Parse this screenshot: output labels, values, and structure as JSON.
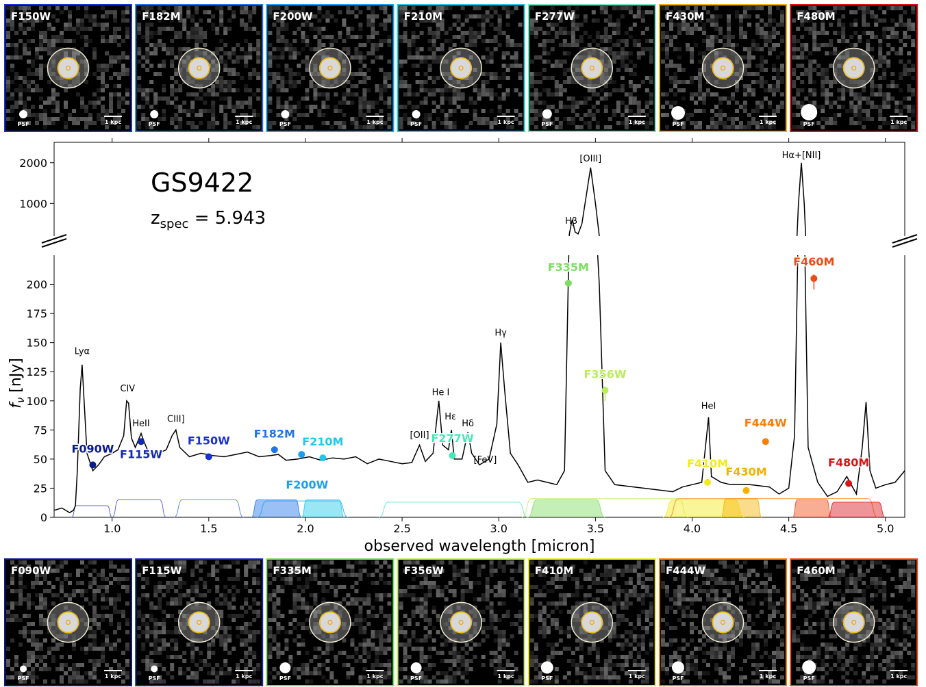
{
  "object": "GS9422",
  "zlabel_prefix": "z",
  "zlabel_sub": "spec",
  "zlabel_value": " = 5.943",
  "psf_label": "PSF",
  "scalebar_label": "1 kpc",
  "thumbnails_top": [
    {
      "name": "F150W",
      "color": "#1a2fd6",
      "psf": 6
    },
    {
      "name": "F182M",
      "color": "#1f74e8",
      "psf": 6
    },
    {
      "name": "F200W",
      "color": "#1aa0f0",
      "psf": 6
    },
    {
      "name": "F210M",
      "color": "#22c8e6",
      "psf": 6
    },
    {
      "name": "F277W",
      "color": "#6fe8c0",
      "psf": 7
    },
    {
      "name": "F430M",
      "color": "#f5b100",
      "psf": 10
    },
    {
      "name": "F480M",
      "color": "#d6141a",
      "psf": 12
    }
  ],
  "thumbnails_bottom": [
    {
      "name": "F090W",
      "color": "#0a1b8a",
      "psf": 5
    },
    {
      "name": "F115W",
      "color": "#1228b4",
      "psf": 5
    },
    {
      "name": "F335M",
      "color": "#7cdd62",
      "psf": 8
    },
    {
      "name": "F356W",
      "color": "#b9ee5a",
      "psf": 8
    },
    {
      "name": "F410M",
      "color": "#f2ea1c",
      "psf": 9
    },
    {
      "name": "F444W",
      "color": "#f57f00",
      "psf": 9
    },
    {
      "name": "F460M",
      "color": "#f04a14",
      "psf": 10
    }
  ],
  "chart_data": {
    "type": "line",
    "xlabel": "observed wavelength [micron]",
    "ylabel": "f",
    "ylabel_sub": "ν",
    "ylabel_unit": " [nJy]",
    "xlim": [
      0.7,
      5.1
    ],
    "ylim_lower": [
      0,
      225
    ],
    "ylim_upper": [
      200,
      2500
    ],
    "x_ticks": [
      "1.0",
      "1.5",
      "2.0",
      "2.5",
      "3.0",
      "3.5",
      "4.0",
      "4.5",
      "5.0"
    ],
    "x_tick_values": [
      1.0,
      1.5,
      2.0,
      2.5,
      3.0,
      3.5,
      4.0,
      4.5,
      5.0
    ],
    "y_ticks_lower": [
      "0",
      "25",
      "50",
      "75",
      "100",
      "125",
      "150",
      "175",
      "200"
    ],
    "y_tick_values_lower": [
      0,
      25,
      50,
      75,
      100,
      125,
      150,
      175,
      200
    ],
    "y_ticks_upper": [
      "1000",
      "2000"
    ],
    "y_tick_values_upper": [
      1000,
      2000
    ],
    "spectrum": [
      [
        0.7,
        6
      ],
      [
        0.74,
        8
      ],
      [
        0.78,
        4
      ],
      [
        0.8,
        6
      ],
      [
        0.81,
        10
      ],
      [
        0.82,
        40
      ],
      [
        0.835,
        110
      ],
      [
        0.845,
        131
      ],
      [
        0.855,
        100
      ],
      [
        0.87,
        55
      ],
      [
        0.9,
        40
      ],
      [
        0.93,
        45
      ],
      [
        0.96,
        52
      ],
      [
        1.0,
        55
      ],
      [
        1.03,
        58
      ],
      [
        1.06,
        70
      ],
      [
        1.075,
        100
      ],
      [
        1.085,
        98
      ],
      [
        1.1,
        68
      ],
      [
        1.12,
        60
      ],
      [
        1.15,
        72
      ],
      [
        1.165,
        65
      ],
      [
        1.19,
        55
      ],
      [
        1.24,
        55
      ],
      [
        1.28,
        58
      ],
      [
        1.31,
        70
      ],
      [
        1.33,
        75
      ],
      [
        1.35,
        60
      ],
      [
        1.4,
        52
      ],
      [
        1.46,
        55
      ],
      [
        1.52,
        53
      ],
      [
        1.58,
        52
      ],
      [
        1.64,
        54
      ],
      [
        1.7,
        56
      ],
      [
        1.76,
        52
      ],
      [
        1.82,
        53
      ],
      [
        1.86,
        54
      ],
      [
        1.9,
        49
      ],
      [
        1.96,
        50
      ],
      [
        2.02,
        52
      ],
      [
        2.08,
        49
      ],
      [
        2.14,
        51
      ],
      [
        2.2,
        50
      ],
      [
        2.26,
        52
      ],
      [
        2.32,
        46
      ],
      [
        2.38,
        50
      ],
      [
        2.44,
        48
      ],
      [
        2.5,
        46
      ],
      [
        2.55,
        47
      ],
      [
        2.59,
        62
      ],
      [
        2.62,
        48
      ],
      [
        2.66,
        55
      ],
      [
        2.69,
        100
      ],
      [
        2.71,
        62
      ],
      [
        2.74,
        58
      ],
      [
        2.755,
        75
      ],
      [
        2.77,
        50
      ],
      [
        2.81,
        50
      ],
      [
        2.84,
        73
      ],
      [
        2.86,
        55
      ],
      [
        2.9,
        45
      ],
      [
        2.95,
        50
      ],
      [
        2.99,
        80
      ],
      [
        3.01,
        150
      ],
      [
        3.03,
        110
      ],
      [
        3.06,
        55
      ],
      [
        3.1,
        45
      ],
      [
        3.15,
        30
      ],
      [
        3.2,
        32
      ],
      [
        3.25,
        30
      ],
      [
        3.3,
        28
      ],
      [
        3.34,
        40
      ],
      [
        3.365,
        250
      ],
      [
        3.375,
        500
      ],
      [
        3.38,
        600
      ],
      [
        3.395,
        300
      ],
      [
        3.41,
        250
      ],
      [
        3.43,
        500
      ],
      [
        3.475,
        1880
      ],
      [
        3.5,
        1000
      ],
      [
        3.52,
        200
      ],
      [
        3.55,
        40
      ],
      [
        3.6,
        28
      ],
      [
        3.7,
        26
      ],
      [
        3.8,
        24
      ],
      [
        3.9,
        22
      ],
      [
        3.95,
        26
      ],
      [
        4.0,
        28
      ],
      [
        4.05,
        30
      ],
      [
        4.075,
        70
      ],
      [
        4.085,
        86
      ],
      [
        4.1,
        35
      ],
      [
        4.15,
        30
      ],
      [
        4.2,
        28
      ],
      [
        4.3,
        28
      ],
      [
        4.4,
        26
      ],
      [
        4.45,
        20
      ],
      [
        4.5,
        25
      ],
      [
        4.53,
        70
      ],
      [
        4.55,
        1000
      ],
      [
        4.565,
        2000
      ],
      [
        4.58,
        1000
      ],
      [
        4.6,
        60
      ],
      [
        4.65,
        30
      ],
      [
        4.7,
        18
      ],
      [
        4.75,
        22
      ],
      [
        4.8,
        35
      ],
      [
        4.85,
        20
      ],
      [
        4.88,
        60
      ],
      [
        4.9,
        99
      ],
      [
        4.92,
        40
      ],
      [
        4.95,
        25
      ],
      [
        5.0,
        28
      ],
      [
        5.05,
        30
      ],
      [
        5.1,
        40
      ]
    ],
    "photometry": [
      {
        "label": "F090W",
        "x": 0.9,
        "y": 45,
        "color": "#0a1b8a"
      },
      {
        "label": "F115W",
        "x": 1.15,
        "y": 65,
        "color": "#1228b4"
      },
      {
        "label": "F150W",
        "x": 1.5,
        "y": 52,
        "color": "#1a2fd6"
      },
      {
        "label": "F182M",
        "x": 1.84,
        "y": 58,
        "color": "#1f74e8"
      },
      {
        "label": "F200W",
        "x": 1.98,
        "y": 54,
        "color": "#1aa0f0"
      },
      {
        "label": "F210M",
        "x": 2.09,
        "y": 51,
        "color": "#22c8e6"
      },
      {
        "label": "F277W",
        "x": 2.76,
        "y": 53,
        "color": "#45e8b8"
      },
      {
        "label": "F335M",
        "x": 3.36,
        "y": 201,
        "color": "#7cdd62"
      },
      {
        "label": "F356W",
        "x": 3.55,
        "y": 109,
        "color": "#b9ee5a"
      },
      {
        "label": "F410M",
        "x": 4.08,
        "y": 30,
        "color": "#f2ea1c"
      },
      {
        "label": "F430M",
        "x": 4.28,
        "y": 23,
        "color": "#f5b100"
      },
      {
        "label": "F444W",
        "x": 4.38,
        "y": 65,
        "color": "#f57f00"
      },
      {
        "label": "F460M",
        "x": 4.63,
        "y": 205,
        "color": "#f04a14"
      },
      {
        "label": "F480M",
        "x": 4.81,
        "y": 29,
        "color": "#d6141a"
      }
    ],
    "line_labels": [
      {
        "text": "Lyα",
        "x": 0.845,
        "y": 140
      },
      {
        "text": "CIV",
        "x": 1.08,
        "y": 108
      },
      {
        "text": "HeII",
        "x": 1.15,
        "y": 78
      },
      {
        "text": "CIII]",
        "x": 1.33,
        "y": 82
      },
      {
        "text": "[OII]",
        "x": 2.59,
        "y": 68
      },
      {
        "text": "He I",
        "x": 2.7,
        "y": 105
      },
      {
        "text": "Hε",
        "x": 2.75,
        "y": 84
      },
      {
        "text": "Hδ",
        "x": 2.84,
        "y": 78
      },
      {
        "text": "[FeV]",
        "x": 2.93,
        "y": 47
      },
      {
        "text": "Hγ",
        "x": 3.01,
        "y": 156
      },
      {
        "text": "Hβ",
        "x": 3.375,
        "y": 2000,
        "upper_text_y": 231
      },
      {
        "text": "[OIII]",
        "x": 3.475,
        "y": 2150,
        "upper": true
      },
      {
        "text": "HeI",
        "x": 4.085,
        "y": 93
      },
      {
        "text": "Hα+[NII]",
        "x": 4.565,
        "y": 2300,
        "upper": true
      }
    ],
    "filters": [
      {
        "name": "F090W",
        "lo": 0.79,
        "hi": 1.0,
        "h": 10,
        "color": "#3b3bd6",
        "filled": false
      },
      {
        "name": "F115W",
        "lo": 1.0,
        "hi": 1.28,
        "h": 15,
        "color": "#3b3bd6",
        "filled": false
      },
      {
        "name": "F150W",
        "lo": 1.32,
        "hi": 1.68,
        "h": 15,
        "color": "#4a6ae8",
        "filled": false
      },
      {
        "name": "F182M",
        "lo": 1.72,
        "hi": 1.98,
        "h": 15,
        "color": "#1f74e8",
        "filled": true
      },
      {
        "name": "F200W",
        "lo": 1.75,
        "hi": 2.22,
        "h": 14,
        "color": "#1aa0f0",
        "filled": false
      },
      {
        "name": "F210M",
        "lo": 1.98,
        "hi": 2.2,
        "h": 15,
        "color": "#22c8e6",
        "filled": true
      },
      {
        "name": "F277W",
        "lo": 2.38,
        "hi": 3.15,
        "h": 13,
        "color": "#45e8b8",
        "filled": false
      },
      {
        "name": "F335M",
        "lo": 3.15,
        "hi": 3.55,
        "h": 15,
        "color": "#7cdd62",
        "filled": true
      },
      {
        "name": "F356W",
        "lo": 3.12,
        "hi": 3.98,
        "h": 16,
        "color": "#b9ee5a",
        "filled": false
      },
      {
        "name": "F410M",
        "lo": 3.85,
        "hi": 4.27,
        "h": 15,
        "color": "#f2ea1c",
        "filled": true
      },
      {
        "name": "F430M",
        "lo": 4.15,
        "hi": 4.36,
        "h": 16,
        "color": "#f5b100",
        "filled": true
      },
      {
        "name": "F444W",
        "lo": 3.88,
        "hi": 4.96,
        "h": 16,
        "color": "#f57f00",
        "filled": false
      },
      {
        "name": "F460M",
        "lo": 4.52,
        "hi": 4.72,
        "h": 15,
        "color": "#f04a14",
        "filled": true
      },
      {
        "name": "F480M",
        "lo": 4.7,
        "hi": 5.0,
        "h": 13,
        "color": "#d6141a",
        "filled": true
      }
    ]
  }
}
